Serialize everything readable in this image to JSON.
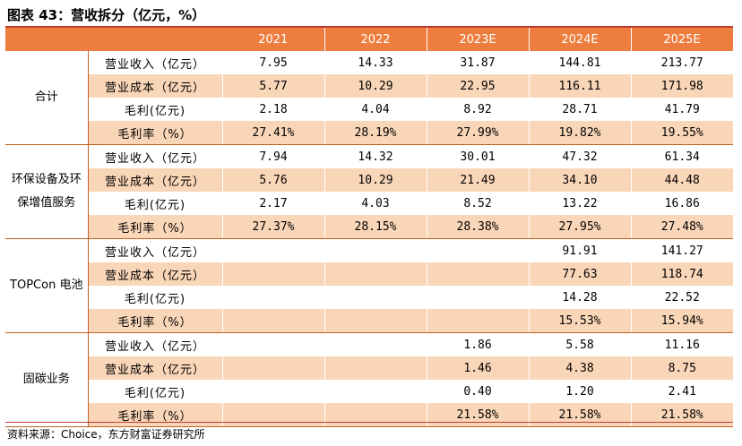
{
  "title": "图表 43：营收拆分（亿元，%）",
  "columns": [
    "2021",
    "2022",
    "2023E",
    "2024E",
    "2025E"
  ],
  "segments": [
    {
      "name": "合计",
      "rows": [
        {
          "metric": "营业收入（亿元）",
          "values": [
            "7.95",
            "14.33",
            "31.87",
            "144.81",
            "213.77"
          ]
        },
        {
          "metric": "营业成本（亿元）",
          "values": [
            "5.77",
            "10.29",
            "22.95",
            "116.11",
            "171.98"
          ]
        },
        {
          "metric": "毛利(亿元)",
          "values": [
            "2.18",
            "4.04",
            "8.92",
            "28.71",
            "41.79"
          ]
        },
        {
          "metric": "毛利率（%）",
          "values": [
            "27.41%",
            "28.19%",
            "27.99%",
            "19.82%",
            "19.55%"
          ]
        }
      ]
    },
    {
      "name": "环保设备及环保增值服务",
      "rows": [
        {
          "metric": "营业收入（亿元）",
          "values": [
            "7.94",
            "14.32",
            "30.01",
            "47.32",
            "61.34"
          ]
        },
        {
          "metric": "营业成本（亿元）",
          "values": [
            "5.76",
            "10.29",
            "21.49",
            "34.10",
            "44.48"
          ]
        },
        {
          "metric": "毛利(亿元)",
          "values": [
            "2.17",
            "4.03",
            "8.52",
            "13.22",
            "16.86"
          ]
        },
        {
          "metric": "毛利率（%）",
          "values": [
            "27.37%",
            "28.15%",
            "28.38%",
            "27.95%",
            "27.48%"
          ]
        }
      ]
    },
    {
      "name": "TOPCon 电池",
      "rows": [
        {
          "metric": "营业收入（亿元）",
          "values": [
            "",
            "",
            "",
            "91.91",
            "141.27"
          ]
        },
        {
          "metric": "营业成本（亿元）",
          "values": [
            "",
            "",
            "",
            "77.63",
            "118.74"
          ]
        },
        {
          "metric": "毛利(亿元)",
          "values": [
            "",
            "",
            "",
            "14.28",
            "22.52"
          ]
        },
        {
          "metric": "毛利率（%）",
          "values": [
            "",
            "",
            "",
            "15.53%",
            "15.94%"
          ]
        }
      ]
    },
    {
      "name": "固碳业务",
      "rows": [
        {
          "metric": "营业收入（亿元）",
          "values": [
            "",
            "",
            "1.86",
            "5.58",
            "11.16"
          ]
        },
        {
          "metric": "营业成本（亿元）",
          "values": [
            "",
            "",
            "1.46",
            "4.38",
            "8.75"
          ]
        },
        {
          "metric": "毛利(亿元)",
          "values": [
            "",
            "",
            "0.40",
            "1.20",
            "2.41"
          ]
        },
        {
          "metric": "毛利率（%）",
          "values": [
            "",
            "",
            "21.58%",
            "21.58%",
            "21.58%"
          ]
        }
      ]
    }
  ],
  "source": "资料来源：Choice，东方财富证券研究所",
  "colors": {
    "header": "#ee7e3f",
    "shade": "#fad6b9",
    "rule": "#c0392b"
  }
}
